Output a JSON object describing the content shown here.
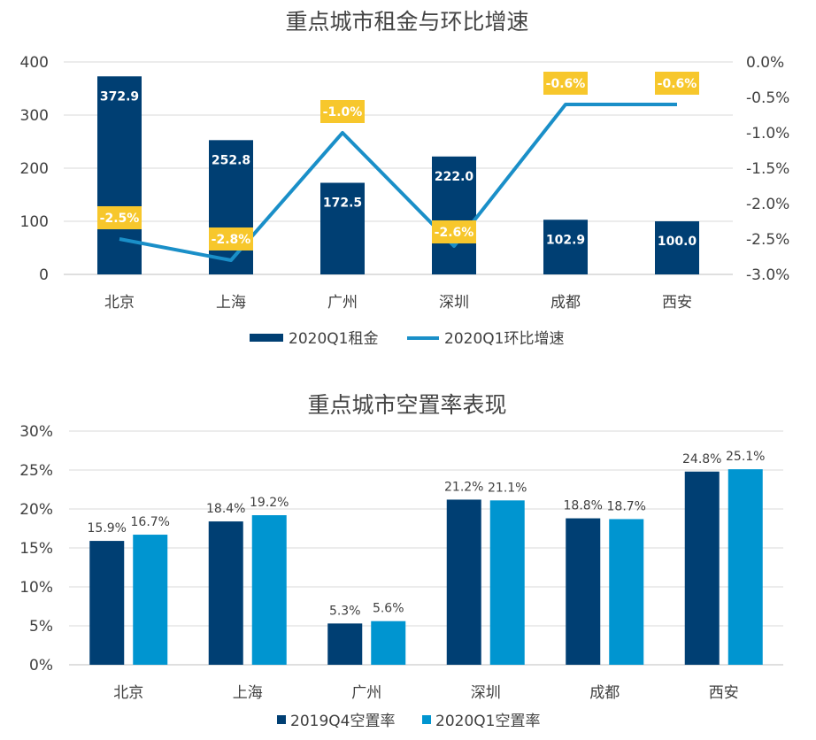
{
  "colors": {
    "rent_bar": "#003f73",
    "growth_line": "#1a8fc8",
    "label_box": "#f7c72c",
    "vac_q4": "#003f73",
    "vac_q1": "#0095d0"
  },
  "chart_data": [
    {
      "type": "bar",
      "title": "重点城市租金与环比增速",
      "categories": [
        "北京",
        "上海",
        "广州",
        "深圳",
        "成都",
        "西安"
      ],
      "ylim": [
        0,
        400
      ],
      "yticks": [
        "0",
        "100",
        "200",
        "300",
        "400"
      ],
      "y2lim": [
        -3.0,
        0.0
      ],
      "y2ticks": [
        "0.0%",
        "-0.5%",
        "-1.0%",
        "-1.5%",
        "-2.0%",
        "-2.5%",
        "-3.0%"
      ],
      "series": [
        {
          "name": "2020Q1租金",
          "kind": "bar",
          "axis": "left",
          "values": [
            372.9,
            252.8,
            172.5,
            222.0,
            102.9,
            100.0
          ],
          "labels": [
            "372.9",
            "252.8",
            "172.5",
            "222.0",
            "102.9",
            "100.0"
          ]
        },
        {
          "name": "2020Q1环比增速",
          "kind": "line",
          "axis": "right",
          "values": [
            -2.5,
            -2.8,
            -1.0,
            -2.6,
            -0.6,
            -0.6
          ],
          "labels": [
            "-2.5%",
            "-2.8%",
            "-1.0%",
            "-2.6%",
            "-0.6%",
            "-0.6%"
          ]
        }
      ],
      "legend": "bottom"
    },
    {
      "type": "bar",
      "title": "重点城市空置率表现",
      "categories": [
        "北京",
        "上海",
        "广州",
        "深圳",
        "成都",
        "西安"
      ],
      "ylim": [
        0,
        30
      ],
      "yticks": [
        "0%",
        "5%",
        "10%",
        "15%",
        "20%",
        "25%",
        "30%"
      ],
      "series": [
        {
          "name": "2019Q4空置率",
          "values": [
            15.9,
            18.4,
            5.3,
            21.2,
            18.8,
            24.8
          ],
          "labels": [
            "15.9%",
            "18.4%",
            "5.3%",
            "21.2%",
            "18.8%",
            "24.8%"
          ]
        },
        {
          "name": "2020Q1空置率",
          "values": [
            16.7,
            19.2,
            5.6,
            21.1,
            18.7,
            25.1
          ],
          "labels": [
            "16.7%",
            "19.2%",
            "5.6%",
            "21.1%",
            "18.7%",
            "25.1%"
          ]
        }
      ],
      "legend": "bottom"
    }
  ]
}
